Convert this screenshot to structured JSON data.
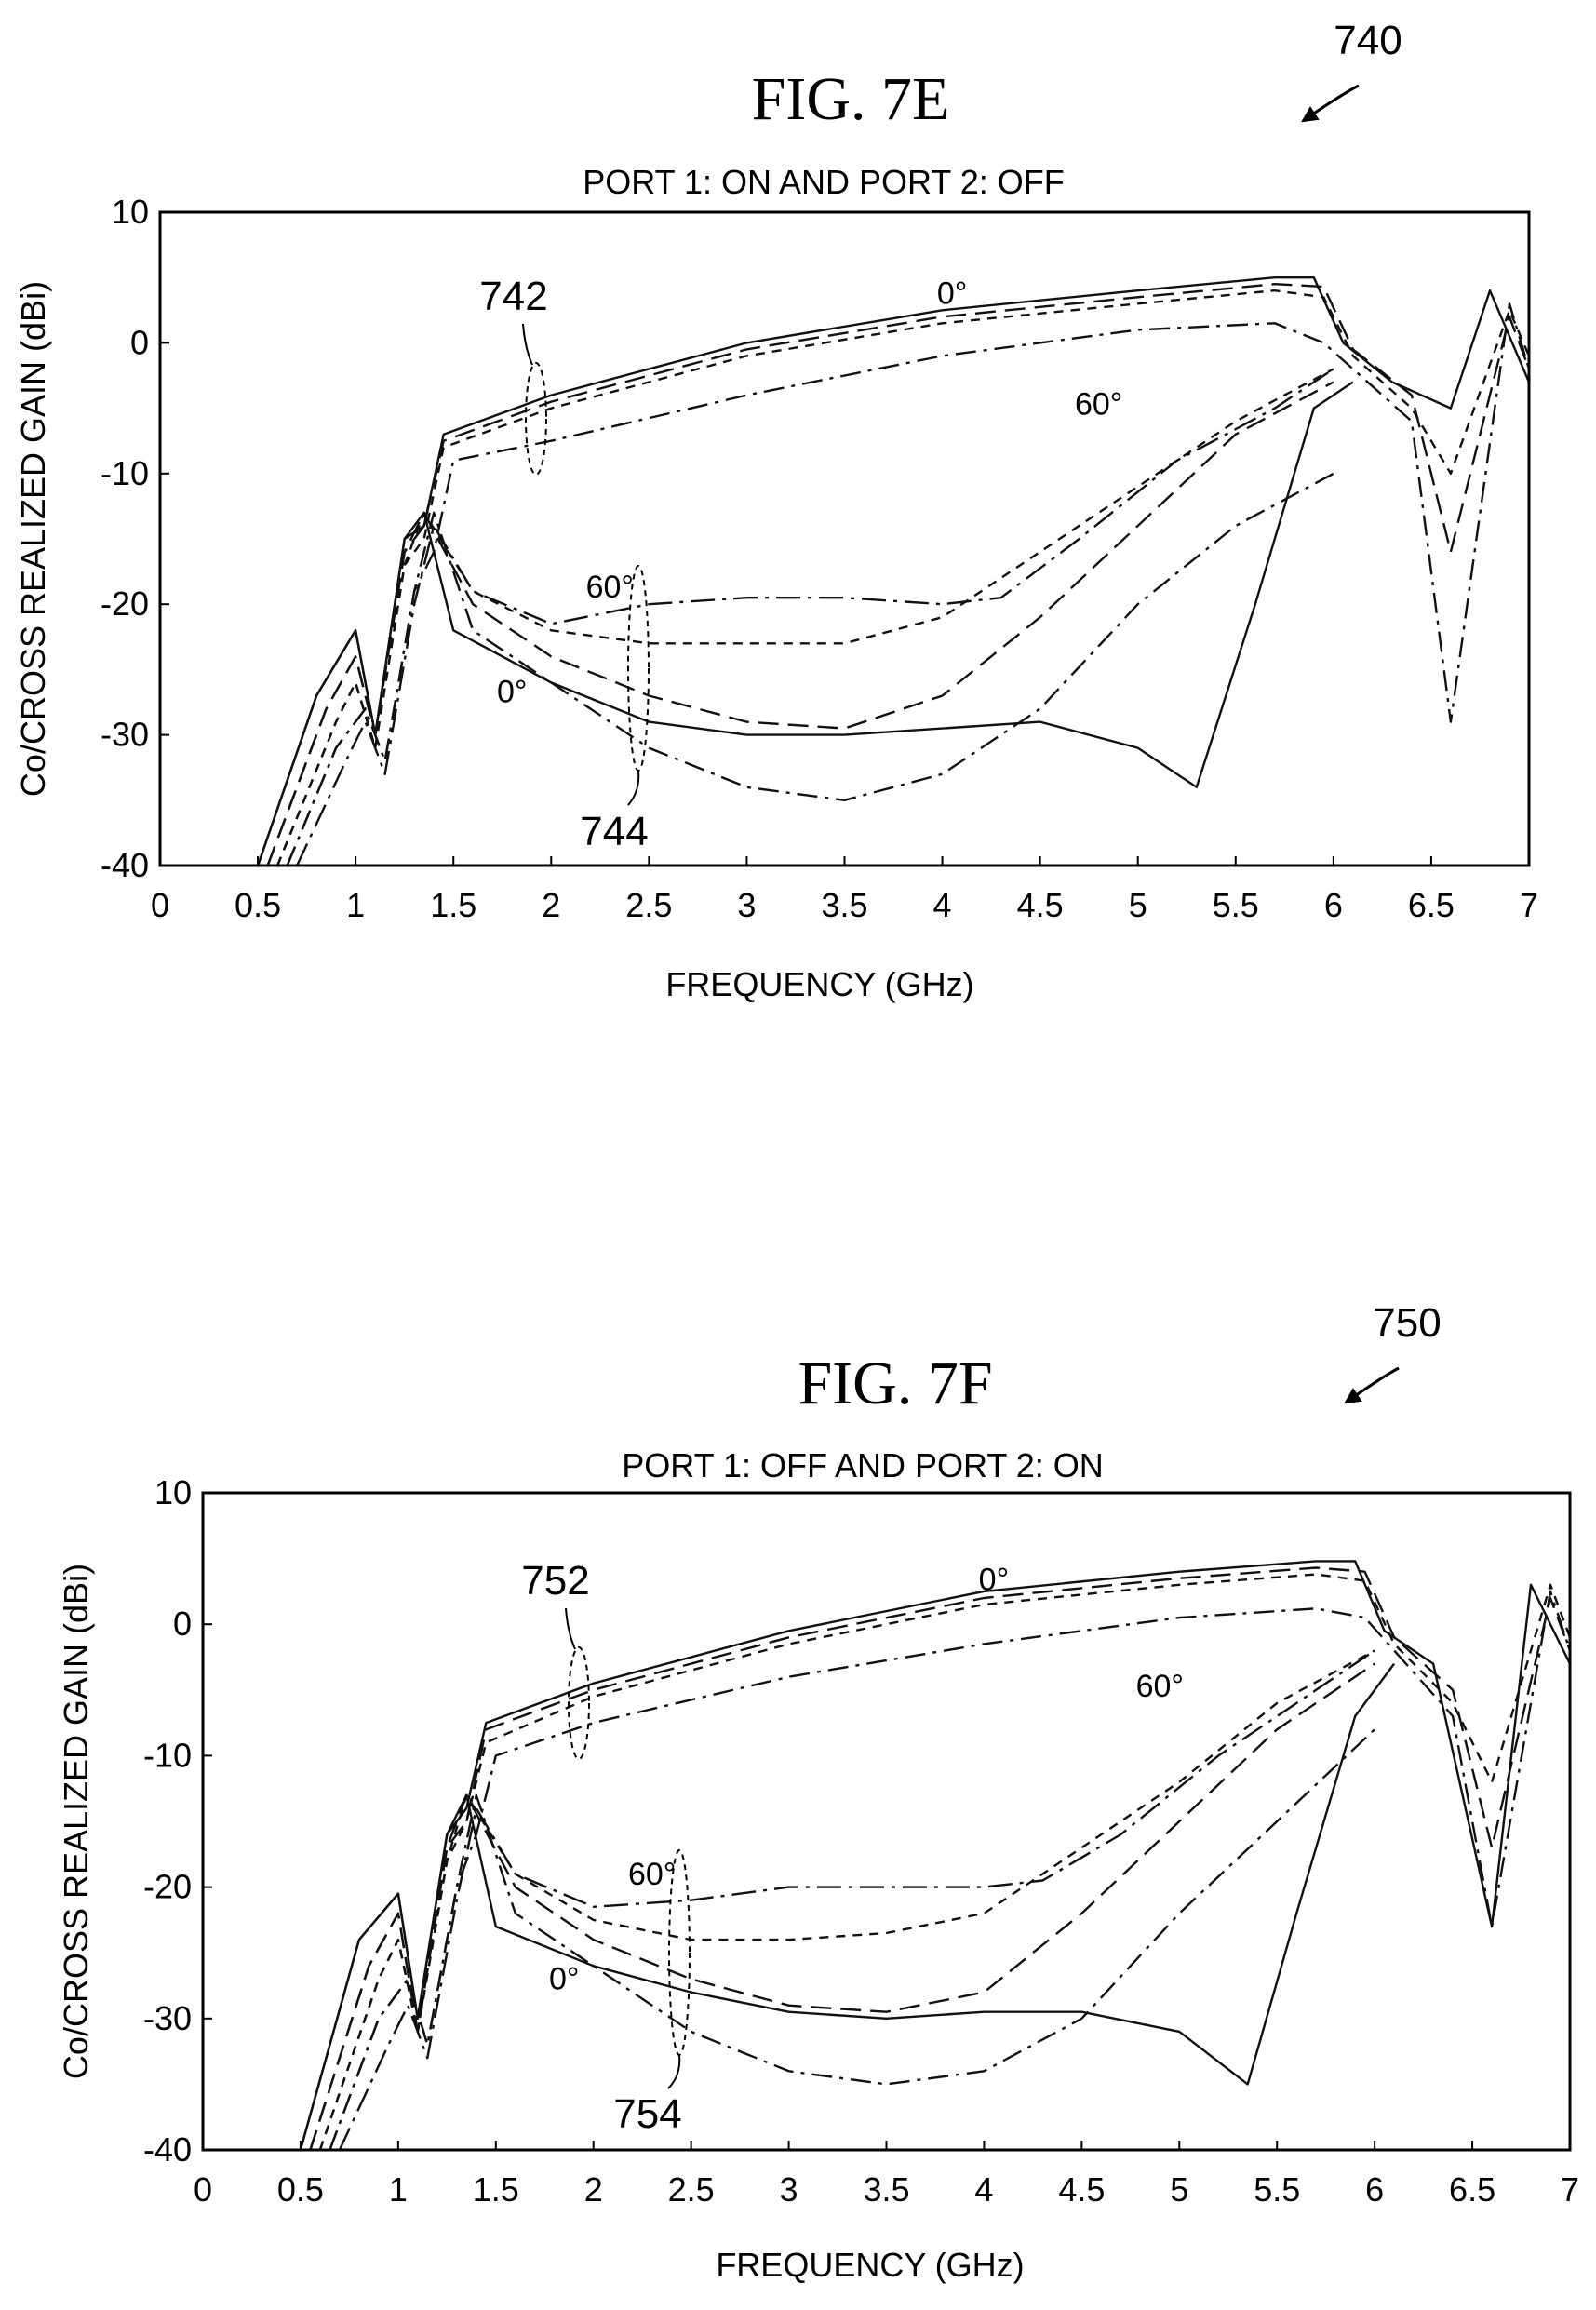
{
  "chart_data": [
    {
      "type": "line",
      "figure_label": "FIG. 7E",
      "reference_numeral": "740",
      "title": "PORT 1: ON AND PORT 2: OFF",
      "xlabel": "FREQUENCY (GHz)",
      "ylabel": "Co/CROSS REALIZED GAIN (dBi)",
      "xlim": [
        0,
        7
      ],
      "ylim": [
        -40,
        10
      ],
      "x_ticks": [
        "0",
        "0.5",
        "1",
        "1.5",
        "2",
        "2.5",
        "3",
        "3.5",
        "4",
        "4.5",
        "5",
        "5.5",
        "6",
        "6.5",
        "7"
      ],
      "y_ticks": [
        "10",
        "0",
        "-10",
        "-20",
        "-30",
        "-40"
      ],
      "grid": false,
      "annotations": {
        "co_group_label": "742",
        "cross_group_label": "744",
        "co_top_angle": "0°",
        "co_bottom_angle": "60°",
        "cross_top_angle": "60°",
        "cross_bottom_angle": "0°"
      },
      "series": [
        {
          "group": "co",
          "style": "solid",
          "x": [
            0.5,
            0.8,
            1.0,
            1.1,
            1.25,
            1.35,
            1.45,
            2,
            3,
            4,
            5,
            5.7,
            5.9,
            6.05,
            6.3,
            6.6,
            6.8,
            7
          ],
          "y": [
            -40,
            -27,
            -22,
            -30,
            -15,
            -14,
            -7,
            -4,
            0,
            2.5,
            4,
            5,
            5,
            0,
            -3,
            -5,
            4,
            -3
          ]
        },
        {
          "group": "co",
          "style": "dashed",
          "x": [
            0.55,
            0.85,
            1.0,
            1.1,
            1.25,
            1.35,
            1.45,
            2,
            3,
            4,
            5,
            5.7,
            5.95,
            6.1,
            6.4,
            6.6,
            6.9,
            7
          ],
          "y": [
            -40,
            -28,
            -24,
            -30,
            -16,
            -14,
            -7.5,
            -4.5,
            -0.5,
            2,
            3.5,
            4.5,
            4.3,
            -0.5,
            -4,
            -16,
            2,
            -2
          ]
        },
        {
          "group": "co",
          "style": "short-dashed",
          "x": [
            0.6,
            0.9,
            1.0,
            1.1,
            1.25,
            1.35,
            1.45,
            2,
            3,
            4,
            5,
            5.7,
            5.95,
            6.1,
            6.4,
            6.6,
            6.9,
            7
          ],
          "y": [
            -40,
            -29,
            -26,
            -31,
            -17,
            -15,
            -8,
            -5,
            -1,
            1.5,
            3,
            4,
            3.5,
            -1,
            -5,
            -10,
            2.5,
            -1
          ]
        },
        {
          "group": "co",
          "style": "dash-dot",
          "x": [
            0.65,
            0.9,
            1.05,
            1.15,
            1.3,
            1.4,
            1.5,
            2,
            3,
            4,
            5,
            5.7,
            5.95,
            6.1,
            6.4,
            6.6,
            6.9,
            7
          ],
          "y": [
            -40,
            -31,
            -28,
            -32,
            -19,
            -16,
            -9,
            -7.5,
            -4,
            -1,
            1,
            1.5,
            0,
            -2,
            -6,
            -29,
            3,
            -2
          ]
        },
        {
          "group": "cross",
          "style": "solid",
          "x": [
            0.5,
            0.8,
            1.0,
            1.1,
            1.25,
            1.35,
            1.5,
            2,
            2.5,
            3,
            3.5,
            4,
            4.5,
            5,
            5.3,
            5.6,
            5.9,
            6.1
          ],
          "y": [
            -40,
            -27,
            -22,
            -30,
            -15,
            -13,
            -22,
            -26,
            -29,
            -30,
            -30,
            -29.5,
            -29,
            -31,
            -34,
            -20,
            -5,
            -3
          ]
        },
        {
          "group": "cross",
          "style": "dash-dot",
          "x": [
            0.65,
            0.9,
            1.05,
            1.15,
            1.3,
            1.4,
            1.6,
            2,
            2.5,
            3,
            3.5,
            4,
            4.5,
            5,
            5.5,
            6
          ],
          "y": [
            -40,
            -31,
            -28,
            -32,
            -19,
            -13,
            -22,
            -26,
            -31,
            -34,
            -35,
            -33,
            -28,
            -20,
            -14,
            -10
          ]
        },
        {
          "group": "cross",
          "style": "dashed",
          "x": [
            0.55,
            0.85,
            1.0,
            1.1,
            1.25,
            1.35,
            1.6,
            2,
            2.5,
            3,
            3.5,
            4,
            4.5,
            5,
            5.5,
            6
          ],
          "y": [
            -40,
            -28,
            -24,
            -30,
            -16,
            -13,
            -20,
            -24,
            -27,
            -29,
            -29.5,
            -27,
            -21,
            -14,
            -7,
            -3
          ]
        },
        {
          "group": "cross",
          "style": "short-dashed",
          "x": [
            0.6,
            0.9,
            1.0,
            1.1,
            1.25,
            1.35,
            1.6,
            2,
            2.5,
            3,
            3.5,
            4,
            4.5,
            5,
            5.5,
            6
          ],
          "y": [
            -40,
            -29,
            -26,
            -31,
            -17,
            -13,
            -19,
            -22,
            -23,
            -23,
            -23,
            -21,
            -16,
            -11,
            -6,
            -2
          ]
        },
        {
          "group": "cross",
          "style": "dash-dot-60",
          "x": [
            0.7,
            0.95,
            1.05,
            1.15,
            1.3,
            1.4,
            1.6,
            2,
            2.5,
            3,
            3.5,
            4,
            4.3,
            4.7,
            5.2,
            5.7,
            6
          ],
          "y": [
            -40,
            -32,
            -29,
            -33,
            -20,
            -14,
            -19,
            -21.5,
            -20,
            -19.5,
            -19.5,
            -20,
            -19.5,
            -15,
            -9,
            -5,
            -2
          ]
        }
      ]
    },
    {
      "type": "line",
      "figure_label": "FIG. 7F",
      "reference_numeral": "750",
      "title": "PORT 1: OFF AND PORT 2: ON",
      "xlabel": "FREQUENCY (GHz)",
      "ylabel": "Co/CROSS REALIZED GAIN (dBi)",
      "xlim": [
        0,
        7
      ],
      "ylim": [
        -40,
        10
      ],
      "x_ticks": [
        "0",
        "0.5",
        "1",
        "1.5",
        "2",
        "2.5",
        "3",
        "3.5",
        "4",
        "4.5",
        "5",
        "5.5",
        "6",
        "6.5",
        "7"
      ],
      "y_ticks": [
        "10",
        "0",
        "-10",
        "-20",
        "-30",
        "-40"
      ],
      "grid": false,
      "annotations": {
        "co_group_label": "752",
        "cross_group_label": "754",
        "co_top_angle": "0°",
        "co_bottom_angle": "60°",
        "cross_top_angle": "60°",
        "cross_bottom_angle": "0°"
      },
      "series": [
        {
          "group": "co",
          "style": "solid",
          "x": [
            0.5,
            0.8,
            1.0,
            1.1,
            1.25,
            1.35,
            1.45,
            2,
            3,
            4,
            5,
            5.7,
            5.9,
            6.05,
            6.3,
            6.6,
            6.8,
            7
          ],
          "y": [
            -40,
            -24,
            -20.5,
            -30,
            -16,
            -14,
            -7.5,
            -4.5,
            -0.5,
            2.5,
            4,
            4.8,
            4.8,
            -0.5,
            -3,
            -23,
            3,
            -3
          ]
        },
        {
          "group": "co",
          "style": "dashed",
          "x": [
            0.55,
            0.85,
            1.0,
            1.1,
            1.25,
            1.35,
            1.45,
            2,
            3,
            4,
            5,
            5.7,
            5.95,
            6.1,
            6.4,
            6.6,
            6.9,
            7
          ],
          "y": [
            -40,
            -26,
            -22,
            -31,
            -17,
            -15,
            -8,
            -5,
            -1,
            2,
            3.5,
            4.3,
            4,
            -1,
            -5,
            -17,
            2,
            -2
          ]
        },
        {
          "group": "co",
          "style": "short-dashed",
          "x": [
            0.6,
            0.9,
            1.0,
            1.1,
            1.25,
            1.35,
            1.45,
            2,
            3,
            4,
            5,
            5.7,
            5.95,
            6.1,
            6.4,
            6.6,
            6.9,
            7
          ],
          "y": [
            -40,
            -27,
            -24,
            -31,
            -18,
            -15,
            -9,
            -5.5,
            -1.5,
            1.5,
            3,
            3.8,
            3.3,
            -1.5,
            -6,
            -12,
            3,
            -1
          ]
        },
        {
          "group": "co",
          "style": "dash-dot",
          "x": [
            0.65,
            0.9,
            1.05,
            1.15,
            1.3,
            1.4,
            1.5,
            2,
            3,
            4,
            5,
            5.7,
            5.95,
            6.1,
            6.4,
            6.6,
            6.9,
            7
          ],
          "y": [
            -40,
            -30,
            -27,
            -32,
            -20,
            -16,
            -10,
            -7.5,
            -4,
            -1.5,
            0.5,
            1.2,
            0.5,
            -2,
            -7,
            -23,
            2.5,
            -2
          ]
        },
        {
          "group": "cross",
          "style": "solid",
          "x": [
            0.5,
            0.8,
            1.0,
            1.1,
            1.25,
            1.35,
            1.5,
            2,
            2.5,
            3,
            3.5,
            4,
            4.5,
            5,
            5.35,
            5.6,
            5.9,
            6.1
          ],
          "y": [
            -40,
            -24,
            -20.5,
            -30,
            -16,
            -13,
            -23,
            -26,
            -28,
            -29.5,
            -30,
            -29.5,
            -29.5,
            -31,
            -35,
            -22,
            -7,
            -3
          ]
        },
        {
          "group": "cross",
          "style": "dash-dot",
          "x": [
            0.65,
            0.9,
            1.05,
            1.15,
            1.3,
            1.4,
            1.6,
            2,
            2.5,
            3,
            3.5,
            4,
            4.5,
            5,
            5.5,
            6
          ],
          "y": [
            -40,
            -30,
            -27,
            -32,
            -20,
            -13,
            -22,
            -26,
            -31,
            -34,
            -35,
            -34,
            -30,
            -22,
            -15,
            -8
          ]
        },
        {
          "group": "cross",
          "style": "dashed",
          "x": [
            0.55,
            0.85,
            1.0,
            1.1,
            1.25,
            1.35,
            1.6,
            2,
            2.5,
            3,
            3.5,
            4,
            4.5,
            5,
            5.5,
            6
          ],
          "y": [
            -40,
            -26,
            -22,
            -31,
            -17,
            -13,
            -20,
            -24,
            -27,
            -29,
            -29.5,
            -28,
            -22,
            -15,
            -8,
            -3
          ]
        },
        {
          "group": "cross",
          "style": "short-dashed",
          "x": [
            0.6,
            0.9,
            1.0,
            1.1,
            1.25,
            1.35,
            1.6,
            2,
            2.5,
            3,
            3.5,
            4,
            4.5,
            5,
            5.5,
            6
          ],
          "y": [
            -40,
            -27,
            -24,
            -31,
            -18,
            -13,
            -19,
            -22.5,
            -24,
            -24,
            -23.5,
            -22,
            -17,
            -12,
            -6,
            -2
          ]
        },
        {
          "group": "cross",
          "style": "dash-dot-60",
          "x": [
            0.7,
            0.95,
            1.05,
            1.15,
            1.3,
            1.4,
            1.6,
            2,
            2.5,
            3,
            3.5,
            4,
            4.3,
            4.7,
            5.2,
            5.7,
            6
          ],
          "y": [
            -40,
            -32,
            -29,
            -33,
            -21,
            -14,
            -19,
            -21.5,
            -21,
            -20,
            -20,
            -20,
            -19.5,
            -16,
            -10,
            -5,
            -2
          ]
        }
      ]
    }
  ]
}
